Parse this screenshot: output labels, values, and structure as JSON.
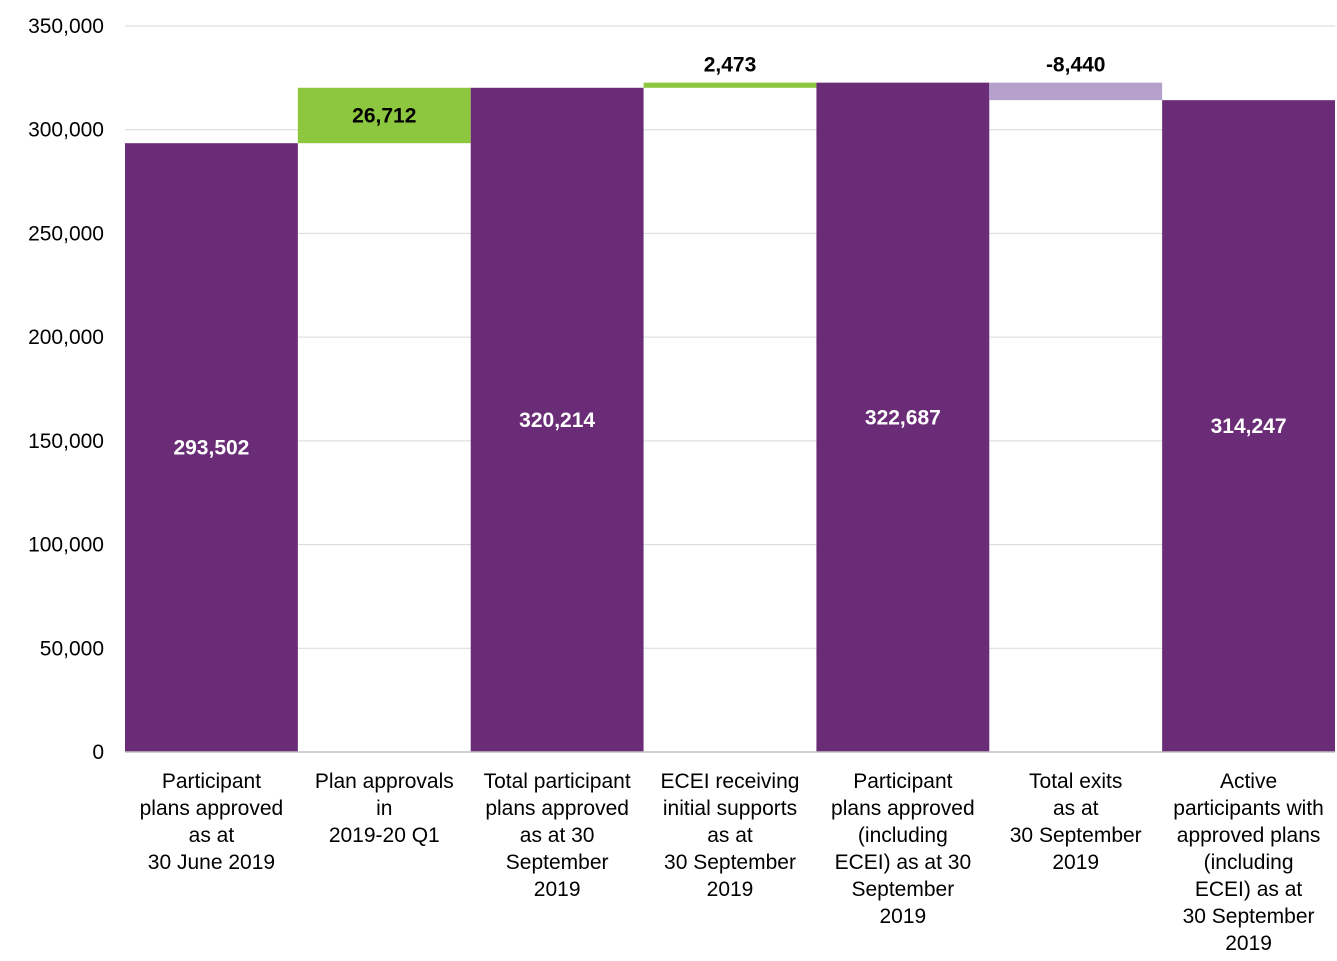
{
  "chart_data": {
    "type": "bar",
    "subtype": "waterfall",
    "title": "",
    "xlabel": "",
    "ylabel": "",
    "ylim": [
      0,
      350000
    ],
    "yticks": [
      0,
      50000,
      100000,
      150000,
      200000,
      250000,
      300000,
      350000
    ],
    "ytick_labels": [
      "0",
      "50,000",
      "100,000",
      "150,000",
      "200,000",
      "250,000",
      "300,000",
      "350,000"
    ],
    "grid": true,
    "legend": "none",
    "categories": [
      [
        "Participant",
        "plans approved",
        "as at",
        "30 June 2019"
      ],
      [
        "Plan approvals",
        "in",
        "2019-20 Q1"
      ],
      [
        "Total participant",
        "plans approved",
        "as at 30",
        "September",
        "2019"
      ],
      [
        "ECEI receiving",
        "initial supports",
        "as at",
        "30 September",
        "2019"
      ],
      [
        "Participant",
        "plans approved",
        "(including",
        "ECEI) as at 30",
        "September",
        "2019"
      ],
      [
        "Total exits",
        "as at",
        "30 September",
        "2019"
      ],
      [
        "Active",
        "participants with",
        "approved plans",
        "(including",
        "ECEI) as at",
        "30 September",
        "2019"
      ]
    ],
    "bars": [
      {
        "kind": "total",
        "base": 0,
        "value": 293502,
        "label": "293,502"
      },
      {
        "kind": "increase",
        "base": 293502,
        "value": 26712,
        "label": "26,712"
      },
      {
        "kind": "total",
        "base": 0,
        "value": 320214,
        "label": "320,214"
      },
      {
        "kind": "increase",
        "base": 320214,
        "value": 2473,
        "label": "2,473"
      },
      {
        "kind": "total",
        "base": 0,
        "value": 322687,
        "label": "322,687"
      },
      {
        "kind": "decrease",
        "base": 322687,
        "value": -8440,
        "label": "-8,440"
      },
      {
        "kind": "total",
        "base": 0,
        "value": 314247,
        "label": "314,247"
      }
    ],
    "colors": {
      "total": "#6a2c76",
      "increase": "#8dc63f",
      "decrease": "#b5a0cb",
      "grid": "#d9d9d9",
      "axis": "#bfbfbf",
      "total_label": "#ffffff",
      "delta_label": "#000000"
    }
  }
}
